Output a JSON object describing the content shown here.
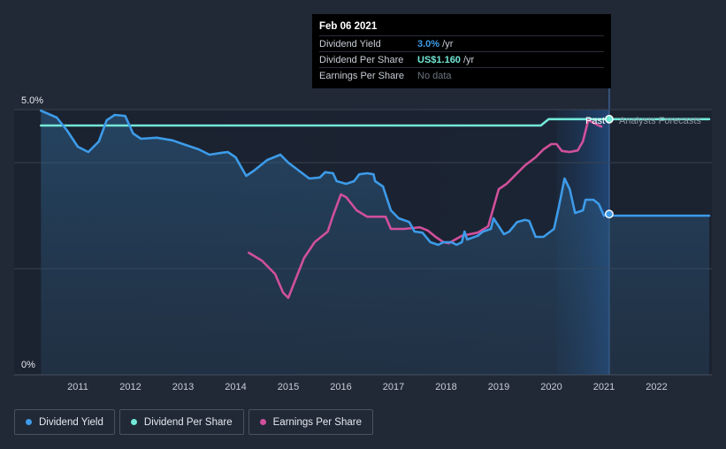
{
  "tooltip": {
    "date": "Feb 06 2021",
    "rows": [
      {
        "name": "Dividend Yield",
        "value": "3.0%",
        "unit": " /yr"
      },
      {
        "name": "Dividend Per Share",
        "value": "US$1.160",
        "unit": " /yr"
      },
      {
        "name": "Earnings Per Share",
        "value": "No data",
        "unit": ""
      }
    ]
  },
  "legend": {
    "items": [
      {
        "label": "Dividend Yield",
        "color": "#3d9be9"
      },
      {
        "label": "Dividend Per Share",
        "color": "#72e8d8"
      },
      {
        "label": "Earnings Per Share",
        "color": "#d0509b"
      }
    ]
  },
  "chart_data": {
    "type": "line",
    "x_axis": {
      "range": [
        2010.3,
        2023.0
      ],
      "ticks": [
        "2011",
        "2012",
        "2013",
        "2014",
        "2015",
        "2016",
        "2017",
        "2018",
        "2019",
        "2020",
        "2021",
        "2022"
      ]
    },
    "y_axis": {
      "range": [
        0,
        5.0
      ],
      "unit": "%",
      "labels": [
        "5.0%",
        "0%"
      ]
    },
    "grid": true,
    "past_label": "Past",
    "forecast_label": "Analysts Forecasts",
    "current_date": 2021.1,
    "forecast_shade_start": 2020.1,
    "colors": {
      "dividend_yield": "#3d9be9",
      "dividend_per_share": "#72e8d8",
      "earnings_per_share": "#d0509b"
    },
    "series": [
      {
        "name": "Dividend Yield",
        "key": "dividend_yield",
        "points": [
          [
            2010.3,
            4.98
          ],
          [
            2010.6,
            4.85
          ],
          [
            2010.8,
            4.6
          ],
          [
            2011.0,
            4.3
          ],
          [
            2011.2,
            4.2
          ],
          [
            2011.4,
            4.4
          ],
          [
            2011.55,
            4.8
          ],
          [
            2011.7,
            4.9
          ],
          [
            2011.9,
            4.88
          ],
          [
            2012.05,
            4.55
          ],
          [
            2012.2,
            4.45
          ],
          [
            2012.5,
            4.47
          ],
          [
            2012.8,
            4.42
          ],
          [
            2013.0,
            4.35
          ],
          [
            2013.3,
            4.25
          ],
          [
            2013.5,
            4.15
          ],
          [
            2013.7,
            4.18
          ],
          [
            2013.85,
            4.2
          ],
          [
            2014.0,
            4.1
          ],
          [
            2014.2,
            3.75
          ],
          [
            2014.35,
            3.85
          ],
          [
            2014.6,
            4.05
          ],
          [
            2014.85,
            4.15
          ],
          [
            2015.0,
            4.0
          ],
          [
            2015.2,
            3.85
          ],
          [
            2015.4,
            3.7
          ],
          [
            2015.6,
            3.72
          ],
          [
            2015.7,
            3.82
          ],
          [
            2015.85,
            3.8
          ],
          [
            2015.92,
            3.65
          ],
          [
            2016.1,
            3.6
          ],
          [
            2016.25,
            3.65
          ],
          [
            2016.35,
            3.78
          ],
          [
            2016.5,
            3.8
          ],
          [
            2016.62,
            3.78
          ],
          [
            2016.65,
            3.65
          ],
          [
            2016.8,
            3.55
          ],
          [
            2016.95,
            3.1
          ],
          [
            2017.1,
            2.95
          ],
          [
            2017.3,
            2.88
          ],
          [
            2017.4,
            2.7
          ],
          [
            2017.55,
            2.68
          ],
          [
            2017.7,
            2.5
          ],
          [
            2017.85,
            2.45
          ],
          [
            2017.95,
            2.5
          ],
          [
            2018.1,
            2.5
          ],
          [
            2018.2,
            2.45
          ],
          [
            2018.3,
            2.5
          ],
          [
            2018.35,
            2.7
          ],
          [
            2018.4,
            2.55
          ],
          [
            2018.6,
            2.62
          ],
          [
            2018.7,
            2.7
          ],
          [
            2018.85,
            2.75
          ],
          [
            2018.9,
            2.95
          ],
          [
            2019.0,
            2.8
          ],
          [
            2019.1,
            2.65
          ],
          [
            2019.2,
            2.7
          ],
          [
            2019.35,
            2.88
          ],
          [
            2019.5,
            2.92
          ],
          [
            2019.58,
            2.9
          ],
          [
            2019.7,
            2.6
          ],
          [
            2019.85,
            2.6
          ],
          [
            2020.05,
            2.75
          ],
          [
            2020.15,
            3.2
          ],
          [
            2020.25,
            3.7
          ],
          [
            2020.35,
            3.5
          ],
          [
            2020.45,
            3.05
          ],
          [
            2020.6,
            3.1
          ],
          [
            2020.65,
            3.3
          ],
          [
            2020.8,
            3.3
          ],
          [
            2020.9,
            3.22
          ],
          [
            2021.0,
            3.0
          ],
          [
            2021.1,
            3.03
          ],
          [
            2021.15,
            3.0
          ],
          [
            2023.0,
            3.0
          ]
        ]
      },
      {
        "name": "Dividend Per Share",
        "key": "dividend_per_share",
        "points": [
          [
            2010.3,
            4.7
          ],
          [
            2019.8,
            4.7
          ],
          [
            2019.95,
            4.82
          ],
          [
            2020.1,
            4.82
          ],
          [
            2023.0,
            4.82
          ]
        ]
      },
      {
        "name": "Earnings Per Share",
        "key": "earnings_per_share",
        "points": [
          [
            2014.25,
            2.3
          ],
          [
            2014.5,
            2.15
          ],
          [
            2014.75,
            1.9
          ],
          [
            2014.9,
            1.55
          ],
          [
            2015.0,
            1.45
          ],
          [
            2015.1,
            1.7
          ],
          [
            2015.3,
            2.2
          ],
          [
            2015.5,
            2.5
          ],
          [
            2015.75,
            2.7
          ],
          [
            2015.85,
            3.0
          ],
          [
            2016.0,
            3.4
          ],
          [
            2016.1,
            3.35
          ],
          [
            2016.3,
            3.1
          ],
          [
            2016.5,
            2.98
          ],
          [
            2016.7,
            2.98
          ],
          [
            2016.85,
            2.98
          ],
          [
            2016.95,
            2.75
          ],
          [
            2017.2,
            2.75
          ],
          [
            2017.5,
            2.78
          ],
          [
            2017.65,
            2.72
          ],
          [
            2017.8,
            2.6
          ],
          [
            2017.95,
            2.5
          ],
          [
            2018.05,
            2.48
          ],
          [
            2018.3,
            2.62
          ],
          [
            2018.6,
            2.68
          ],
          [
            2018.8,
            2.8
          ],
          [
            2019.0,
            3.5
          ],
          [
            2019.15,
            3.6
          ],
          [
            2019.3,
            3.75
          ],
          [
            2019.5,
            3.95
          ],
          [
            2019.7,
            4.1
          ],
          [
            2019.85,
            4.25
          ],
          [
            2020.0,
            4.35
          ],
          [
            2020.1,
            4.35
          ],
          [
            2020.2,
            4.22
          ],
          [
            2020.35,
            4.2
          ],
          [
            2020.5,
            4.23
          ],
          [
            2020.6,
            4.4
          ],
          [
            2020.7,
            4.8
          ],
          [
            2020.8,
            4.75
          ],
          [
            2020.9,
            4.7
          ],
          [
            2020.95,
            4.68
          ]
        ]
      }
    ],
    "markers": [
      {
        "series": "dividend_per_share",
        "x": 2021.1,
        "y": 4.82
      },
      {
        "series": "dividend_yield",
        "x": 2021.1,
        "y": 3.03
      }
    ]
  }
}
